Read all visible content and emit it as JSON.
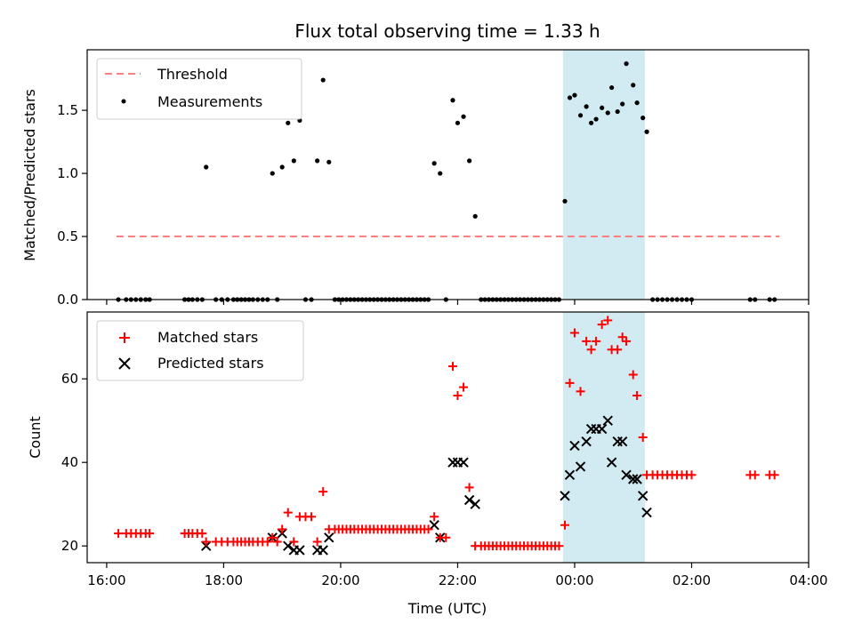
{
  "chart_data": [
    {
      "type": "scatter",
      "title": "Flux total observing time = 1.33 h",
      "ylabel": "Matched/Predicted stars",
      "xlim": [
        "15:40",
        "04:00"
      ],
      "ylim": [
        0,
        1.98
      ],
      "yticks": [
        "0.0",
        "0.5",
        "1.0",
        "1.5"
      ],
      "grid": false,
      "legend_position": "top-left",
      "shaded_interval": {
        "from": "23:48",
        "to": "01:12",
        "color": "#add8e6"
      },
      "threshold": {
        "name": "Threshold",
        "value": 0.5,
        "from": "16:10",
        "to": "03:30",
        "color": "#ff7f7f",
        "style": "dashed"
      },
      "measurements": {
        "name": "Measurements",
        "color": "#000000",
        "points": [
          [
            "16:12",
            0
          ],
          [
            "16:20",
            0
          ],
          [
            "16:25",
            0
          ],
          [
            "16:30",
            0
          ],
          [
            "16:35",
            0
          ],
          [
            "16:40",
            0
          ],
          [
            "16:44",
            0
          ],
          [
            "17:20",
            0
          ],
          [
            "17:24",
            0
          ],
          [
            "17:28",
            0
          ],
          [
            "17:33",
            0
          ],
          [
            "17:38",
            0
          ],
          [
            "17:42",
            1.05
          ],
          [
            "17:52",
            0
          ],
          [
            "17:58",
            0
          ],
          [
            "18:04",
            0
          ],
          [
            "18:10",
            0
          ],
          [
            "18:14",
            0
          ],
          [
            "18:18",
            0
          ],
          [
            "18:22",
            0
          ],
          [
            "18:26",
            0
          ],
          [
            "18:30",
            0
          ],
          [
            "18:35",
            0
          ],
          [
            "18:40",
            0
          ],
          [
            "18:45",
            0
          ],
          [
            "18:50",
            1.0
          ],
          [
            "18:55",
            0
          ],
          [
            "19:00",
            1.05
          ],
          [
            "19:06",
            1.4
          ],
          [
            "19:12",
            1.1
          ],
          [
            "19:18",
            1.42
          ],
          [
            "19:24",
            0
          ],
          [
            "19:30",
            0
          ],
          [
            "19:36",
            1.1
          ],
          [
            "19:42",
            1.74
          ],
          [
            "19:48",
            1.09
          ],
          [
            "19:54",
            0
          ],
          [
            "19:58",
            0
          ],
          [
            "20:02",
            0
          ],
          [
            "20:06",
            0
          ],
          [
            "20:10",
            0
          ],
          [
            "20:14",
            0
          ],
          [
            "20:18",
            0
          ],
          [
            "20:22",
            0
          ],
          [
            "20:26",
            0
          ],
          [
            "20:30",
            0
          ],
          [
            "20:34",
            0
          ],
          [
            "20:38",
            0
          ],
          [
            "20:42",
            0
          ],
          [
            "20:46",
            0
          ],
          [
            "20:50",
            0
          ],
          [
            "20:54",
            0
          ],
          [
            "20:58",
            0
          ],
          [
            "21:02",
            0
          ],
          [
            "21:06",
            0
          ],
          [
            "21:10",
            0
          ],
          [
            "21:14",
            0
          ],
          [
            "21:18",
            0
          ],
          [
            "21:22",
            0
          ],
          [
            "21:26",
            0
          ],
          [
            "21:30",
            0
          ],
          [
            "21:36",
            1.08
          ],
          [
            "21:42",
            1.0
          ],
          [
            "21:48",
            0
          ],
          [
            "21:55",
            1.58
          ],
          [
            "22:00",
            1.4
          ],
          [
            "22:06",
            1.45
          ],
          [
            "22:12",
            1.1
          ],
          [
            "22:18",
            0.66
          ],
          [
            "22:24",
            0
          ],
          [
            "22:28",
            0
          ],
          [
            "22:32",
            0
          ],
          [
            "22:36",
            0
          ],
          [
            "22:40",
            0
          ],
          [
            "22:44",
            0
          ],
          [
            "22:48",
            0
          ],
          [
            "22:52",
            0
          ],
          [
            "22:56",
            0
          ],
          [
            "23:00",
            0
          ],
          [
            "23:04",
            0
          ],
          [
            "23:08",
            0
          ],
          [
            "23:12",
            0
          ],
          [
            "23:16",
            0
          ],
          [
            "23:20",
            0
          ],
          [
            "23:24",
            0
          ],
          [
            "23:28",
            0
          ],
          [
            "23:32",
            0
          ],
          [
            "23:36",
            0
          ],
          [
            "23:40",
            0
          ],
          [
            "23:44",
            0
          ],
          [
            "23:50",
            0.78
          ],
          [
            "23:55",
            1.6
          ],
          [
            "00:00",
            1.62
          ],
          [
            "00:06",
            1.46
          ],
          [
            "00:12",
            1.53
          ],
          [
            "00:17",
            1.4
          ],
          [
            "00:22",
            1.43
          ],
          [
            "00:28",
            1.52
          ],
          [
            "00:34",
            1.48
          ],
          [
            "00:38",
            1.68
          ],
          [
            "00:44",
            1.49
          ],
          [
            "00:49",
            1.55
          ],
          [
            "00:53",
            1.87
          ],
          [
            "01:00",
            1.7
          ],
          [
            "01:04",
            1.56
          ],
          [
            "01:10",
            1.44
          ],
          [
            "01:14",
            1.33
          ],
          [
            "01:20",
            0
          ],
          [
            "01:25",
            0
          ],
          [
            "01:30",
            0
          ],
          [
            "01:35",
            0
          ],
          [
            "01:40",
            0
          ],
          [
            "01:45",
            0
          ],
          [
            "01:50",
            0
          ],
          [
            "01:55",
            0
          ],
          [
            "02:00",
            0
          ],
          [
            "03:00",
            0
          ],
          [
            "03:05",
            0
          ],
          [
            "03:20",
            0
          ],
          [
            "03:25",
            0
          ]
        ]
      }
    },
    {
      "type": "scatter",
      "xlabel": "Time (UTC)",
      "ylabel": "Count",
      "xlim": [
        "15:40",
        "04:00"
      ],
      "ylim": [
        16,
        76
      ],
      "xticks": [
        "16:00",
        "18:00",
        "20:00",
        "22:00",
        "00:00",
        "02:00",
        "04:00"
      ],
      "yticks": [
        "20",
        "40",
        "60"
      ],
      "grid": false,
      "legend_position": "top-left",
      "shaded_interval": {
        "from": "23:48",
        "to": "01:12",
        "color": "#add8e6"
      },
      "series": [
        {
          "name": "Matched stars",
          "marker": "plus",
          "color": "#ff0000",
          "points": [
            [
              "16:12",
              23
            ],
            [
              "16:20",
              23
            ],
            [
              "16:25",
              23
            ],
            [
              "16:30",
              23
            ],
            [
              "16:35",
              23
            ],
            [
              "16:40",
              23
            ],
            [
              "16:44",
              23
            ],
            [
              "17:20",
              23
            ],
            [
              "17:24",
              23
            ],
            [
              "17:28",
              23
            ],
            [
              "17:33",
              23
            ],
            [
              "17:38",
              23
            ],
            [
              "17:42",
              21
            ],
            [
              "17:52",
              21
            ],
            [
              "17:58",
              21
            ],
            [
              "18:04",
              21
            ],
            [
              "18:10",
              21
            ],
            [
              "18:14",
              21
            ],
            [
              "18:18",
              21
            ],
            [
              "18:22",
              21
            ],
            [
              "18:26",
              21
            ],
            [
              "18:30",
              21
            ],
            [
              "18:35",
              21
            ],
            [
              "18:40",
              21
            ],
            [
              "18:45",
              21
            ],
            [
              "18:50",
              22
            ],
            [
              "18:55",
              21
            ],
            [
              "19:00",
              24
            ],
            [
              "19:06",
              28
            ],
            [
              "19:12",
              21
            ],
            [
              "19:18",
              27
            ],
            [
              "19:24",
              27
            ],
            [
              "19:30",
              27
            ],
            [
              "19:36",
              21
            ],
            [
              "19:42",
              33
            ],
            [
              "19:48",
              24
            ],
            [
              "19:54",
              24
            ],
            [
              "19:58",
              24
            ],
            [
              "20:02",
              24
            ],
            [
              "20:06",
              24
            ],
            [
              "20:10",
              24
            ],
            [
              "20:14",
              24
            ],
            [
              "20:18",
              24
            ],
            [
              "20:22",
              24
            ],
            [
              "20:26",
              24
            ],
            [
              "20:30",
              24
            ],
            [
              "20:34",
              24
            ],
            [
              "20:38",
              24
            ],
            [
              "20:42",
              24
            ],
            [
              "20:46",
              24
            ],
            [
              "20:50",
              24
            ],
            [
              "20:54",
              24
            ],
            [
              "20:58",
              24
            ],
            [
              "21:02",
              24
            ],
            [
              "21:06",
              24
            ],
            [
              "21:10",
              24
            ],
            [
              "21:14",
              24
            ],
            [
              "21:18",
              24
            ],
            [
              "21:22",
              24
            ],
            [
              "21:26",
              24
            ],
            [
              "21:30",
              24
            ],
            [
              "21:36",
              27
            ],
            [
              "21:42",
              22
            ],
            [
              "21:48",
              22
            ],
            [
              "21:55",
              63
            ],
            [
              "22:00",
              56
            ],
            [
              "22:06",
              58
            ],
            [
              "22:12",
              34
            ],
            [
              "22:18",
              20
            ],
            [
              "22:24",
              20
            ],
            [
              "22:28",
              20
            ],
            [
              "22:32",
              20
            ],
            [
              "22:36",
              20
            ],
            [
              "22:40",
              20
            ],
            [
              "22:44",
              20
            ],
            [
              "22:48",
              20
            ],
            [
              "22:52",
              20
            ],
            [
              "22:56",
              20
            ],
            [
              "23:00",
              20
            ],
            [
              "23:04",
              20
            ],
            [
              "23:08",
              20
            ],
            [
              "23:12",
              20
            ],
            [
              "23:16",
              20
            ],
            [
              "23:20",
              20
            ],
            [
              "23:24",
              20
            ],
            [
              "23:28",
              20
            ],
            [
              "23:32",
              20
            ],
            [
              "23:36",
              20
            ],
            [
              "23:40",
              20
            ],
            [
              "23:44",
              20
            ],
            [
              "23:50",
              25
            ],
            [
              "23:55",
              59
            ],
            [
              "00:00",
              71
            ],
            [
              "00:06",
              57
            ],
            [
              "00:12",
              69
            ],
            [
              "00:17",
              67
            ],
            [
              "00:22",
              69
            ],
            [
              "00:28",
              73
            ],
            [
              "00:34",
              74
            ],
            [
              "00:38",
              67
            ],
            [
              "00:44",
              67
            ],
            [
              "00:49",
              70
            ],
            [
              "00:53",
              69
            ],
            [
              "01:00",
              61
            ],
            [
              "01:04",
              56
            ],
            [
              "01:10",
              46
            ],
            [
              "01:14",
              37
            ],
            [
              "01:20",
              37
            ],
            [
              "01:25",
              37
            ],
            [
              "01:30",
              37
            ],
            [
              "01:35",
              37
            ],
            [
              "01:40",
              37
            ],
            [
              "01:45",
              37
            ],
            [
              "01:50",
              37
            ],
            [
              "01:55",
              37
            ],
            [
              "02:00",
              37
            ],
            [
              "03:00",
              37
            ],
            [
              "03:05",
              37
            ],
            [
              "03:20",
              37
            ],
            [
              "03:25",
              37
            ]
          ]
        },
        {
          "name": "Predicted stars",
          "marker": "x",
          "color": "#000000",
          "points": [
            [
              "17:42",
              20
            ],
            [
              "18:50",
              22
            ],
            [
              "19:00",
              23
            ],
            [
              "19:06",
              20
            ],
            [
              "19:12",
              19
            ],
            [
              "19:18",
              19
            ],
            [
              "19:36",
              19
            ],
            [
              "19:42",
              19
            ],
            [
              "19:48",
              22
            ],
            [
              "21:36",
              25
            ],
            [
              "21:42",
              22
            ],
            [
              "21:55",
              40
            ],
            [
              "22:00",
              40
            ],
            [
              "22:06",
              40
            ],
            [
              "22:12",
              31
            ],
            [
              "22:18",
              30
            ],
            [
              "23:50",
              32
            ],
            [
              "23:55",
              37
            ],
            [
              "00:00",
              44
            ],
            [
              "00:06",
              39
            ],
            [
              "00:12",
              45
            ],
            [
              "00:17",
              48
            ],
            [
              "00:22",
              48
            ],
            [
              "00:28",
              48
            ],
            [
              "00:34",
              50
            ],
            [
              "00:38",
              40
            ],
            [
              "00:44",
              45
            ],
            [
              "00:49",
              45
            ],
            [
              "00:53",
              37
            ],
            [
              "01:00",
              36
            ],
            [
              "01:04",
              36
            ],
            [
              "01:10",
              32
            ],
            [
              "01:14",
              28
            ]
          ]
        }
      ]
    }
  ]
}
